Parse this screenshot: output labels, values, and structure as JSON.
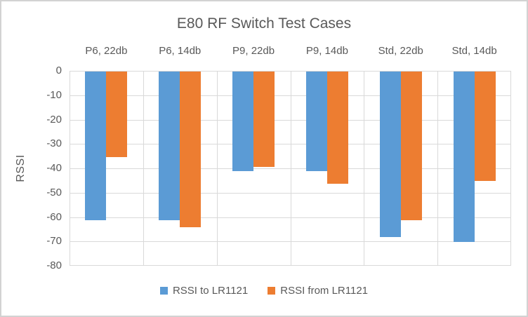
{
  "chart_data": {
    "type": "bar",
    "title": "E80 RF Switch Test Cases",
    "ylabel": "RSSI",
    "xlabel": "",
    "categories": [
      "P6, 22db",
      "P6, 14db",
      "P9, 22db",
      "P9, 14db",
      "Std, 22db",
      "Std, 14db"
    ],
    "series": [
      {
        "name": "RSSI to LR1121",
        "color": "#5B9BD5",
        "values": [
          -61,
          -61,
          -41,
          -41,
          -68,
          -70
        ]
      },
      {
        "name": "RSSI from LR1121",
        "color": "#ED7D31",
        "values": [
          -35,
          -64,
          -39,
          -46,
          -61,
          -45
        ]
      }
    ],
    "ylim": [
      -80,
      0
    ],
    "ytick_step": 10,
    "grid": true,
    "legend_position": "bottom"
  },
  "colors": {
    "text": "#595959",
    "gridline": "#D9D9D9",
    "frame_border": "#D2D2D2",
    "background": "#FFFFFF"
  }
}
